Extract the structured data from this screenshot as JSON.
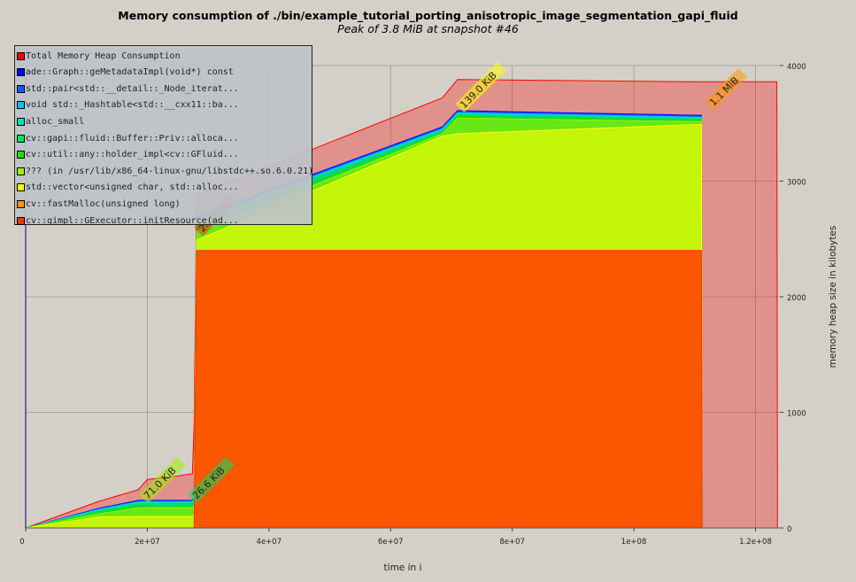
{
  "chart_data": {
    "type": "area",
    "title": "Memory consumption of ./bin/example_tutorial_porting_anisotropic_image_segmentation_gapi_fluid",
    "subtitle": "Peak of 3.8 MiB at snapshot #46",
    "xlabel": "time in i",
    "ylabel": "memory heap size in kilobytes",
    "xlim": [
      0,
      124000000
    ],
    "ylim": [
      0,
      4000
    ],
    "x_ticks": [
      "0",
      "2e+07",
      "4e+07",
      "6e+07",
      "8e+07",
      "1e+08",
      "1.2e+08"
    ],
    "x_tick_values": [
      0,
      20000000,
      40000000,
      60000000,
      80000000,
      100000000,
      120000000
    ],
    "y_ticks": [
      "0",
      "1000",
      "2000",
      "3000",
      "4000"
    ],
    "y_tick_values": [
      0,
      1000,
      2000,
      3000,
      4000
    ],
    "grid": true,
    "legend_position": "top-left",
    "x": [
      0,
      12000000,
      18500000,
      20000000,
      25000000,
      27400000,
      27700000,
      28100000,
      68500000,
      71000000,
      110000000,
      111100000,
      111200000,
      113000000,
      116000000,
      123500000,
      123600000
    ],
    "series": [
      {
        "name": "Total Memory Heap Consumption",
        "color": "#ff0000",
        "values": [
          0,
          230,
          330,
          420,
          450,
          470,
          900,
          2880,
          3720,
          3880,
          3860,
          3860,
          3860,
          3860,
          3860,
          3860,
          240
        ]
      },
      {
        "name": "ade::Graph::geMetadataImpl(void*) const",
        "color": "#0000ff",
        "values": [
          0,
          170,
          238,
          238,
          238,
          240,
          260,
          2690,
          3470,
          3610,
          3570,
          3570,
          0,
          0,
          0,
          0,
          0
        ]
      },
      {
        "name": "std::pair<std::__detail::_Node_iterat...",
        "color": "#0060ff",
        "values": [
          0,
          165,
          232,
          232,
          232,
          234,
          252,
          2680,
          3460,
          3600,
          3560,
          3560,
          0,
          0,
          0,
          0,
          0
        ]
      },
      {
        "name": "void std::_Hashtable<std::__cxx11::ba...",
        "color": "#00c0ff",
        "values": [
          0,
          160,
          226,
          226,
          226,
          228,
          246,
          2672,
          3452,
          3592,
          3554,
          3554,
          0,
          0,
          0,
          0,
          0
        ]
      },
      {
        "name": "alloc_small",
        "color": "#00e0c0",
        "values": [
          0,
          155,
          220,
          220,
          220,
          222,
          240,
          2662,
          3444,
          3584,
          3548,
          3548,
          0,
          0,
          0,
          0,
          0
        ]
      },
      {
        "name": "cv::gapi::fluid::Buffer::Priv::alloca...",
        "color": "#00e060",
        "values": [
          0,
          148,
          212,
          212,
          212,
          214,
          232,
          2650,
          3436,
          3576,
          3540,
          3540,
          0,
          0,
          0,
          0,
          0
        ]
      },
      {
        "name": "cv::util::any::holder_impl<cv::GFluid...",
        "color": "#20e000",
        "values": [
          0,
          138,
          198,
          198,
          198,
          200,
          216,
          2610,
          3420,
          3560,
          3528,
          3528,
          0,
          0,
          0,
          0,
          0
        ]
      },
      {
        "name": "??? (in /usr/lib/x86_64-linux-gnu/libstdc++.so.6.0.21)",
        "color": "#a0f000",
        "values": [
          0,
          120,
          175,
          175,
          175,
          176,
          190,
          2560,
          3410,
          3545,
          3515,
          3515,
          0,
          0,
          0,
          0,
          0
        ]
      },
      {
        "name": "std::vector<unsigned char, std::alloc...",
        "color": "#ffff00",
        "values": [
          0,
          95,
          100,
          100,
          100,
          100,
          110,
          2490,
          3390,
          3410,
          3490,
          3490,
          0,
          0,
          0,
          0,
          0
        ]
      },
      {
        "name": "cv::fastMalloc(unsigned long)",
        "color": "#ff9900",
        "values": [
          0,
          0,
          0,
          0,
          0,
          0,
          2,
          2400,
          2400,
          2400,
          2400,
          2400,
          0,
          0,
          0,
          0,
          0
        ]
      },
      {
        "name": "cv::gimpl::GExecutor::initResource(ad...",
        "color": "#ff3300",
        "values": [
          0,
          0,
          0,
          0,
          0,
          0,
          0,
          2400,
          2400,
          2400,
          2400,
          2400,
          0,
          0,
          0,
          0,
          0
        ]
      }
    ],
    "annotations": [
      {
        "text": "71.0 KiB",
        "x": 20000000,
        "y": 240,
        "color": "#a0f000"
      },
      {
        "text": "26.6 KiB",
        "x": 28000000,
        "y": 240,
        "color": "#00e060"
      },
      {
        "text": "2.3 MiB",
        "x": 29000000,
        "y": 2550,
        "color": "#ff3300"
      },
      {
        "text": "139.0 KiB",
        "x": 72000000,
        "y": 3620,
        "color": "#ffff00"
      },
      {
        "text": "1.1 MiB",
        "x": 113000000,
        "y": 3640,
        "color": "#ff9900"
      }
    ]
  }
}
